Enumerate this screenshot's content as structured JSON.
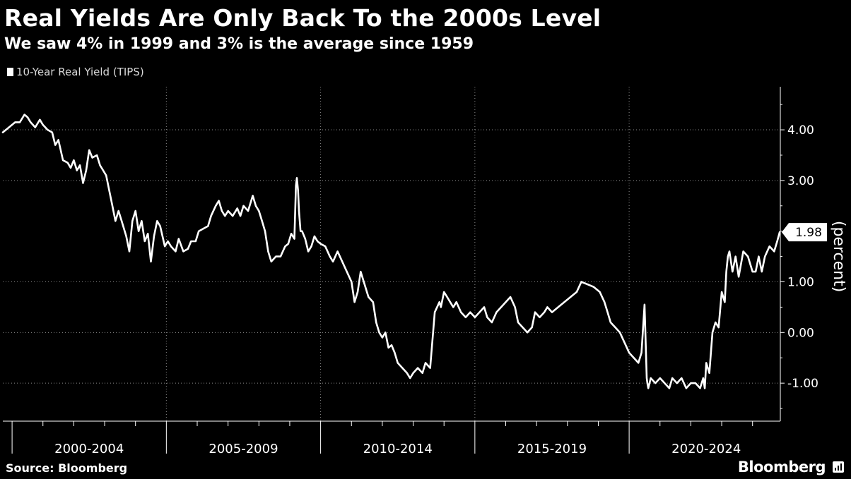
{
  "chart_data": {
    "type": "line",
    "title": "Real Yields Are Only Back To the 2000s Level",
    "subtitle": "We saw 4% in 1999 and 3% is the average since 1959",
    "ylabel": "(percent)",
    "ylim": [
      -1.75,
      4.85
    ],
    "xlim": [
      1999.3,
      2024.5
    ],
    "yticks": [
      -1.0,
      0.0,
      1.0,
      3.0,
      4.0
    ],
    "ytick_labels": [
      "-1.00",
      "0.00",
      "1.00",
      "3.00",
      "4.00"
    ],
    "x_groups": [
      {
        "label": "2000-2004",
        "start": 1999.6,
        "end": 2004.6
      },
      {
        "label": "2005-2009",
        "start": 2004.6,
        "end": 2009.6
      },
      {
        "label": "2010-2014",
        "start": 2009.6,
        "end": 2014.6
      },
      {
        "label": "2015-2019",
        "start": 2014.6,
        "end": 2019.6
      },
      {
        "label": "2020-2024",
        "start": 2019.6,
        "end": 2024.6
      }
    ],
    "last_value_label": "1.98",
    "grid": true,
    "legend_position": "top-left",
    "series": [
      {
        "name": "10-Year Real Yield (TIPS)",
        "color": "#ffffff",
        "x": [
          1999.3,
          1999.5,
          1999.6,
          1999.7,
          1999.85,
          2000.0,
          2000.1,
          2000.2,
          2000.35,
          2000.5,
          2000.6,
          2000.75,
          2000.9,
          2001.0,
          2001.1,
          2001.25,
          2001.4,
          2001.5,
          2001.6,
          2001.7,
          2001.8,
          2001.9,
          2002.0,
          2002.1,
          2002.2,
          2002.35,
          2002.45,
          2002.55,
          2002.65,
          2002.75,
          2002.85,
          2002.95,
          2003.05,
          2003.15,
          2003.3,
          2003.4,
          2003.5,
          2003.6,
          2003.7,
          2003.8,
          2003.9,
          2004.0,
          2004.1,
          2004.2,
          2004.3,
          2004.4,
          2004.55,
          2004.65,
          2004.75,
          2004.9,
          2005.0,
          2005.15,
          2005.3,
          2005.4,
          2005.55,
          2005.65,
          2005.8,
          2005.95,
          2006.05,
          2006.2,
          2006.3,
          2006.4,
          2006.5,
          2006.6,
          2006.75,
          2006.9,
          2007.0,
          2007.1,
          2007.25,
          2007.4,
          2007.5,
          2007.6,
          2007.7,
          2007.8,
          2007.9,
          2008.0,
          2008.15,
          2008.3,
          2008.45,
          2008.55,
          2008.65,
          2008.75,
          2008.8,
          2008.83,
          2008.87,
          2008.9,
          2008.95,
          2009.0,
          2009.1,
          2009.2,
          2009.3,
          2009.4,
          2009.5,
          2009.6,
          2009.75,
          2009.9,
          2010.0,
          2010.15,
          2010.3,
          2010.45,
          2010.6,
          2010.7,
          2010.8,
          2010.9,
          2011.0,
          2011.15,
          2011.3,
          2011.4,
          2011.5,
          2011.6,
          2011.7,
          2011.8,
          2011.9,
          2012.0,
          2012.1,
          2012.25,
          2012.4,
          2012.5,
          2012.6,
          2012.75,
          2012.9,
          2013.0,
          2013.15,
          2013.3,
          2013.45,
          2013.5,
          2013.6,
          2013.7,
          2013.8,
          2013.9,
          2014.0,
          2014.15,
          2014.3,
          2014.45,
          2014.6,
          2014.75,
          2014.9,
          2015.0,
          2015.15,
          2015.3,
          2015.45,
          2015.6,
          2015.75,
          2015.9,
          2016.0,
          2016.15,
          2016.3,
          2016.45,
          2016.55,
          2016.7,
          2016.85,
          2016.95,
          2017.1,
          2017.3,
          2017.5,
          2017.7,
          2017.9,
          2018.05,
          2018.25,
          2018.45,
          2018.65,
          2018.8,
          2018.9,
          2019.0,
          2019.15,
          2019.3,
          2019.45,
          2019.6,
          2019.75,
          2019.9,
          2020.0,
          2020.1,
          2020.17,
          2020.19,
          2020.22,
          2020.3,
          2020.45,
          2020.6,
          2020.75,
          2020.9,
          2021.0,
          2021.15,
          2021.3,
          2021.45,
          2021.6,
          2021.75,
          2021.9,
          2022.0,
          2022.05,
          2022.1,
          2022.2,
          2022.3,
          2022.4,
          2022.5,
          2022.6,
          2022.7,
          2022.75,
          2022.8,
          2022.85,
          2022.95,
          2023.05,
          2023.15,
          2023.3,
          2023.45,
          2023.6,
          2023.7,
          2023.8,
          2023.9,
          2024.0,
          2024.15,
          2024.3,
          2024.4,
          2024.48
        ],
        "y": [
          3.95,
          4.05,
          4.1,
          4.15,
          4.15,
          4.3,
          4.25,
          4.15,
          4.05,
          4.2,
          4.1,
          4.0,
          3.95,
          3.7,
          3.8,
          3.4,
          3.35,
          3.25,
          3.4,
          3.2,
          3.3,
          2.95,
          3.2,
          3.6,
          3.45,
          3.5,
          3.3,
          3.2,
          3.1,
          2.8,
          2.5,
          2.2,
          2.4,
          2.2,
          1.9,
          1.6,
          2.2,
          2.4,
          2.0,
          2.2,
          1.8,
          1.95,
          1.4,
          1.9,
          2.2,
          2.1,
          1.7,
          1.8,
          1.7,
          1.6,
          1.85,
          1.6,
          1.65,
          1.8,
          1.8,
          2.0,
          2.05,
          2.1,
          2.3,
          2.5,
          2.6,
          2.4,
          2.3,
          2.4,
          2.3,
          2.45,
          2.3,
          2.5,
          2.4,
          2.7,
          2.5,
          2.4,
          2.2,
          2.0,
          1.6,
          1.4,
          1.5,
          1.5,
          1.7,
          1.75,
          1.95,
          1.85,
          2.9,
          3.05,
          2.8,
          2.4,
          2.0,
          2.0,
          1.85,
          1.6,
          1.7,
          1.9,
          1.8,
          1.75,
          1.7,
          1.5,
          1.4,
          1.6,
          1.4,
          1.2,
          1.0,
          0.6,
          0.8,
          1.2,
          1.0,
          0.7,
          0.6,
          0.2,
          0.0,
          -0.1,
          0.0,
          -0.3,
          -0.25,
          -0.4,
          -0.6,
          -0.7,
          -0.8,
          -0.9,
          -0.8,
          -0.7,
          -0.8,
          -0.6,
          -0.7,
          0.4,
          0.6,
          0.5,
          0.8,
          0.7,
          0.6,
          0.5,
          0.6,
          0.4,
          0.3,
          0.4,
          0.3,
          0.4,
          0.5,
          0.3,
          0.2,
          0.4,
          0.5,
          0.6,
          0.7,
          0.5,
          0.2,
          0.1,
          0.0,
          0.1,
          0.4,
          0.3,
          0.4,
          0.5,
          0.4,
          0.5,
          0.6,
          0.7,
          0.8,
          1.0,
          0.95,
          0.9,
          0.8,
          0.6,
          0.4,
          0.2,
          0.1,
          0.0,
          -0.2,
          -0.4,
          -0.5,
          -0.6,
          -0.4,
          0.55,
          -0.9,
          -1.0,
          -1.1,
          -0.9,
          -1.0,
          -0.9,
          -1.0,
          -1.1,
          -0.9,
          -1.0,
          -0.9,
          -1.1,
          -1.0,
          -1.0,
          -1.1,
          -0.9,
          -1.1,
          -0.6,
          -0.8,
          0.0,
          0.2,
          0.1,
          0.8,
          0.6,
          1.2,
          1.5,
          1.6,
          1.2,
          1.5,
          1.1,
          1.6,
          1.5,
          1.2,
          1.2,
          1.5,
          1.2,
          1.5,
          1.7,
          1.6,
          1.8,
          1.98
        ]
      }
    ]
  }
}
